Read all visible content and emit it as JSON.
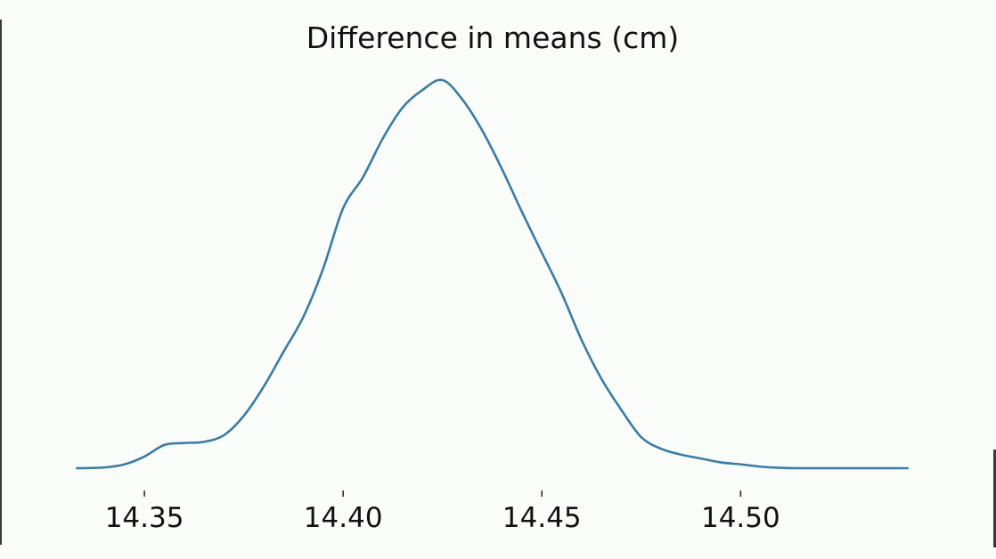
{
  "chart_data": {
    "type": "line",
    "title": "Difference in means (cm)",
    "xlabel": "",
    "ylabel": "",
    "xlim": [
      14.3325,
      14.5425
    ],
    "ylim": [
      0,
      1
    ],
    "xticks": [
      14.35,
      14.4,
      14.45,
      14.5
    ],
    "xtick_labels": [
      "14.35",
      "14.40",
      "14.45",
      "14.50"
    ],
    "y_axis_visible": false,
    "grid": false,
    "legend": "none",
    "series": [
      {
        "color": "#3a7ca5",
        "x": [
          14.333,
          14.34,
          14.345,
          14.35,
          14.355,
          14.36,
          14.365,
          14.37,
          14.375,
          14.38,
          14.385,
          14.39,
          14.395,
          14.4,
          14.405,
          14.41,
          14.415,
          14.42,
          14.425,
          14.43,
          14.435,
          14.44,
          14.445,
          14.45,
          14.455,
          14.46,
          14.465,
          14.47,
          14.475,
          14.48,
          14.485,
          14.49,
          14.495,
          14.5,
          14.505,
          14.51,
          14.515,
          14.52,
          14.525,
          14.53,
          14.535,
          14.542
        ],
        "y": [
          0.0,
          0.002,
          0.01,
          0.03,
          0.06,
          0.065,
          0.068,
          0.085,
          0.135,
          0.21,
          0.3,
          0.39,
          0.515,
          0.67,
          0.75,
          0.85,
          0.93,
          0.975,
          1.0,
          0.95,
          0.87,
          0.77,
          0.66,
          0.555,
          0.45,
          0.33,
          0.23,
          0.15,
          0.08,
          0.05,
          0.035,
          0.025,
          0.015,
          0.01,
          0.004,
          0.001,
          0.0,
          0.0,
          0.0,
          0.0,
          0.0,
          0.0
        ]
      }
    ]
  }
}
